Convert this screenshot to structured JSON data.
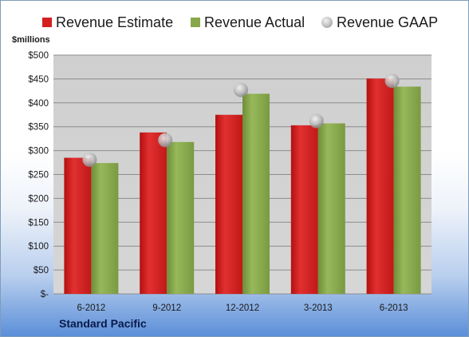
{
  "legend": {
    "estimate": "Revenue Estimate",
    "actual": "Revenue Actual",
    "gaap": "Revenue GAAP"
  },
  "ylabel": "$millions",
  "company": "Standard Pacific",
  "colors": {
    "estimate": "#d42020",
    "actual": "#86a84a",
    "gaap": "#c0c0c0"
  },
  "chart_data": {
    "type": "bar",
    "categories": [
      "6-2012",
      "9-2012",
      "12-2012",
      "3-2013",
      "6-2013"
    ],
    "series": [
      {
        "name": "Revenue Estimate",
        "values": [
          285,
          338,
          375,
          353,
          451
        ]
      },
      {
        "name": "Revenue Actual",
        "values": [
          274,
          318,
          419,
          357,
          434
        ]
      },
      {
        "name": "Revenue GAAP",
        "values": [
          281,
          322,
          427,
          362,
          446
        ]
      }
    ],
    "ylabel": "$millions",
    "ylim": [
      0,
      500
    ],
    "yticks": [
      "$-",
      "$50",
      "$100",
      "$150",
      "$200",
      "$250",
      "$300",
      "$350",
      "$400",
      "$450",
      "$500"
    ],
    "grid": true,
    "legend": "top"
  }
}
